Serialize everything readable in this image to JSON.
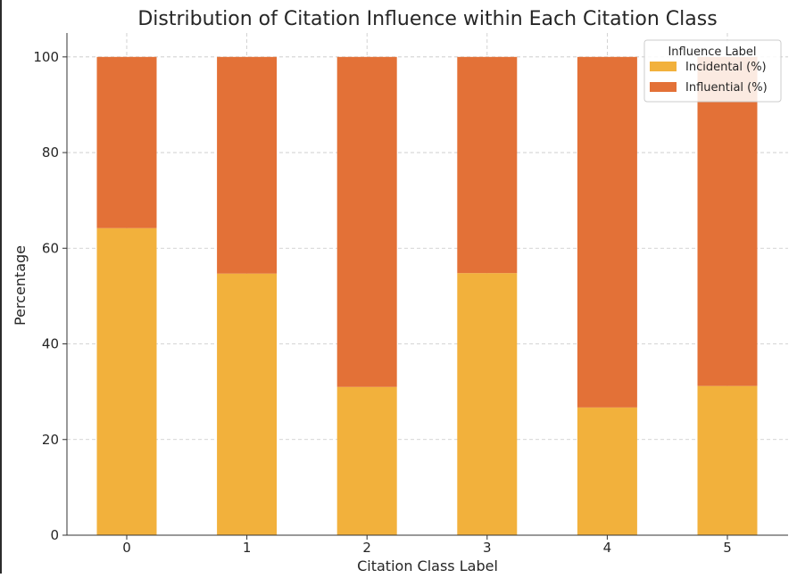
{
  "chart_data": {
    "type": "bar",
    "stacked": true,
    "title": "Distribution of Citation Influence within Each Citation Class",
    "xlabel": "Citation Class Label",
    "ylabel": "Percentage",
    "categories": [
      "0",
      "1",
      "2",
      "3",
      "4",
      "5"
    ],
    "ylim": [
      0,
      105
    ],
    "yticks": [
      0,
      20,
      40,
      60,
      80,
      100
    ],
    "grid": true,
    "legend": {
      "title": "Influence Label",
      "placement": "top-right"
    },
    "series": [
      {
        "name": "Incidental (%)",
        "color": "#F2B13C",
        "values": [
          64.2,
          54.7,
          31.0,
          54.8,
          26.7,
          31.2
        ]
      },
      {
        "name": "Influential (%)",
        "color": "#E37137",
        "values": [
          35.8,
          45.3,
          69.0,
          45.2,
          73.3,
          68.8
        ]
      }
    ]
  }
}
